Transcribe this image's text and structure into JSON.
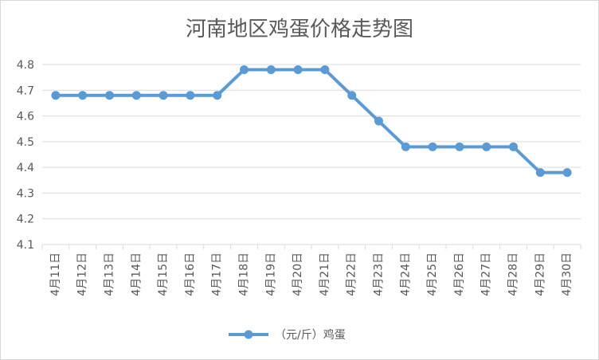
{
  "chart_data": {
    "type": "line",
    "title": "河南地区鸡蛋价格走势图",
    "categories": [
      "4月11日",
      "4月12日",
      "4月13日",
      "4月14日",
      "4月15日",
      "4月16日",
      "4月17日",
      "4月18日",
      "4月19日",
      "4月20日",
      "4月21日",
      "4月22日",
      "4月23日",
      "4月24日",
      "4月25日",
      "4月26日",
      "4月27日",
      "4月28日",
      "4月29日",
      "4月30日"
    ],
    "series": [
      {
        "name": "（元/斤）鸡蛋",
        "values": [
          4.68,
          4.68,
          4.68,
          4.68,
          4.68,
          4.68,
          4.68,
          4.78,
          4.78,
          4.78,
          4.78,
          4.68,
          4.58,
          4.48,
          4.48,
          4.48,
          4.48,
          4.48,
          4.38,
          4.38
        ]
      }
    ],
    "ylim": [
      4.1,
      4.8
    ],
    "yticks": [
      "4.1",
      "4.2",
      "4.3",
      "4.4",
      "4.5",
      "4.6",
      "4.7",
      "4.8"
    ],
    "xlabel": "",
    "ylabel": "",
    "grid": true,
    "legend_position": "bottom",
    "colors": {
      "series": "#5b9bd5",
      "grid": "#d9d9d9",
      "text": "#595959"
    }
  }
}
